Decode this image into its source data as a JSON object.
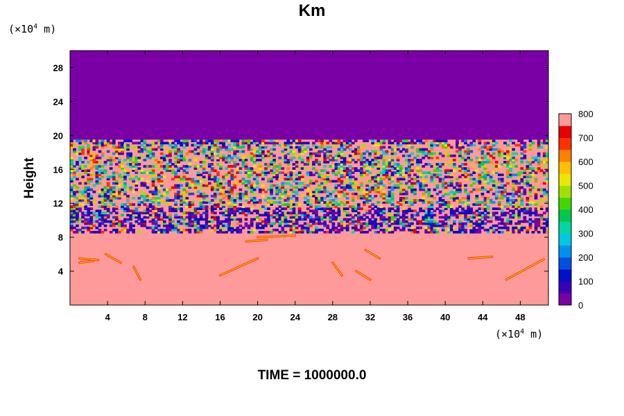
{
  "chart_data": {
    "type": "heatmap",
    "title": "Km",
    "ylabel": "Height",
    "xlabel": "",
    "x_unit_label": "(×10",
    "x_unit_exp": "4",
    "x_unit_suffix": " m)",
    "y_unit_label": "(×10",
    "y_unit_exp": "4",
    "y_unit_suffix": " m)",
    "footer": "TIME = 1000000.0",
    "xlim": [
      0,
      51
    ],
    "ylim": [
      0,
      30
    ],
    "x_ticks": [
      "4",
      "8",
      "12",
      "16",
      "20",
      "24",
      "28",
      "32",
      "36",
      "40",
      "44",
      "48"
    ],
    "y_ticks": [
      "4",
      "8",
      "12",
      "16",
      "20",
      "24",
      "28"
    ],
    "colorbar": {
      "min": 0,
      "max": 800,
      "labels": [
        "0",
        "100",
        "200",
        "300",
        "400",
        "500",
        "600",
        "700",
        "800"
      ],
      "colors": [
        "#7a00a6",
        "#3a00b8",
        "#0010c8",
        "#0050e0",
        "#0090f0",
        "#00c8e0",
        "#00d8a0",
        "#00c850",
        "#40d800",
        "#a0e000",
        "#e8e800",
        "#ffc000",
        "#ff8000",
        "#ff3000",
        "#e80000",
        "#ff9a9a"
      ]
    },
    "regions": [
      {
        "y_range": [
          19.5,
          30
        ],
        "value": 0,
        "description": "upper region, Km ≈ 0"
      },
      {
        "y_range": [
          8.5,
          19.5
        ],
        "value": "mixed 0–800",
        "description": "turbulent layer"
      },
      {
        "y_range": [
          0,
          8.5
        ],
        "value": 800,
        "description": "lower region, Km ≈ 800"
      }
    ]
  }
}
